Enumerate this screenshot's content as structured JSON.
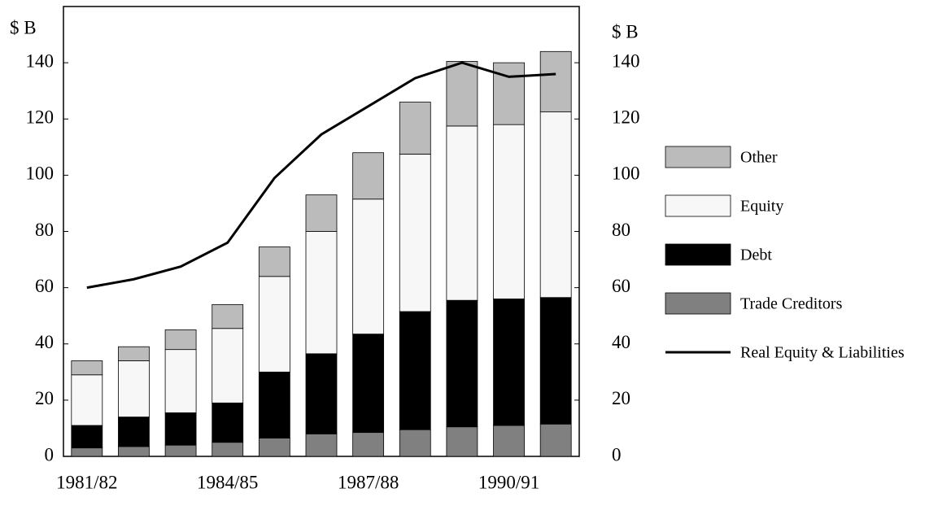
{
  "chart_data": {
    "type": "bar",
    "stacked": true,
    "y_label": "$ B",
    "y2_label": "$ B",
    "categories": [
      "1981/82",
      null,
      null,
      "1984/85",
      null,
      null,
      "1987/88",
      null,
      null,
      "1990/91",
      null
    ],
    "series": [
      {
        "name": "Trade Creditors",
        "color": "#808080",
        "values": [
          3,
          3.5,
          4,
          5,
          6.5,
          8,
          8.5,
          9.5,
          10.5,
          11,
          11.5
        ]
      },
      {
        "name": "Debt",
        "color": "#000000",
        "values": [
          8,
          10.5,
          11.5,
          14,
          23.5,
          28.5,
          35,
          42,
          45,
          45,
          45
        ]
      },
      {
        "name": "Equity",
        "color": "#f7f7f7",
        "values": [
          18,
          20,
          22.5,
          26.5,
          34,
          43.5,
          48,
          56,
          62,
          62,
          66
        ]
      },
      {
        "name": "Other",
        "color": "#bbbbbb",
        "values": [
          5,
          5,
          7,
          8.5,
          10.5,
          13,
          16.5,
          18.5,
          23,
          22,
          21.5
        ]
      },
      {
        "name": "Real Equity & Liabilities",
        "color": "#000000",
        "type": "line",
        "axis": "y2",
        "values": [
          60,
          63,
          67.5,
          76,
          99,
          114.5,
          124.5,
          134.5,
          140,
          135,
          136
        ]
      }
    ],
    "ylim": [
      0,
      160
    ],
    "yticks": [
      0,
      20,
      40,
      60,
      80,
      100,
      120,
      140
    ],
    "y2lim": [
      0,
      160
    ],
    "y2ticks": [
      0,
      20,
      40,
      60,
      80,
      100,
      120,
      140
    ],
    "legend": "right"
  }
}
